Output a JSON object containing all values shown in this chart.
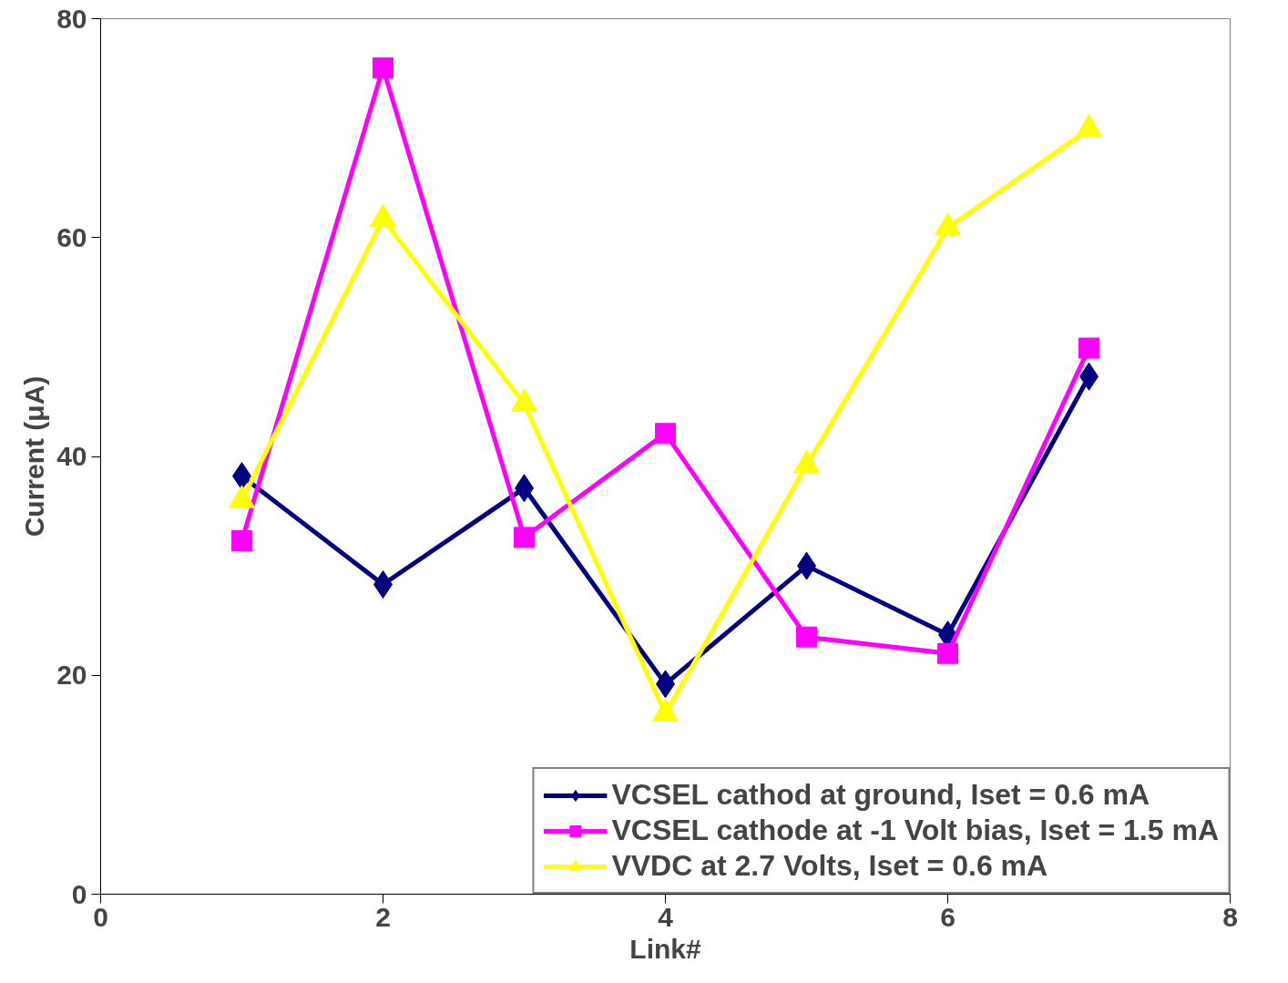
{
  "chart_data": {
    "type": "line",
    "xlabel": "Link#",
    "ylabel": "Current (μA)",
    "x": [
      1,
      2,
      3,
      4,
      5,
      6,
      7
    ],
    "series": [
      {
        "name": "VCSEL cathod at ground, Iset = 0.6 mA",
        "color": "#000080",
        "marker": "diamond",
        "values": [
          38.2,
          28.3,
          37.1,
          19.2,
          30.0,
          23.7,
          47.3
        ]
      },
      {
        "name": "VCSEL cathode at -1 Volt bias, Iset = 1.5 mA",
        "color": "#ff00ff",
        "marker": "square",
        "values": [
          32.3,
          75.5,
          32.6,
          42.1,
          23.5,
          22.0,
          49.9
        ]
      },
      {
        "name": "VVDC at 2.7 Volts, Iset = 0.6 mA",
        "color": "#ffff00",
        "marker": "triangle",
        "values": [
          36.0,
          61.7,
          44.8,
          16.5,
          39.2,
          60.9,
          69.9
        ]
      }
    ],
    "xlim": [
      0,
      8
    ],
    "xticks": [
      0,
      2,
      4,
      6,
      8
    ],
    "ylim": [
      0,
      80
    ],
    "yticks": [
      0,
      20,
      40,
      60,
      80
    ],
    "grid": false,
    "legend": "bottom right",
    "line_style": "solid"
  }
}
